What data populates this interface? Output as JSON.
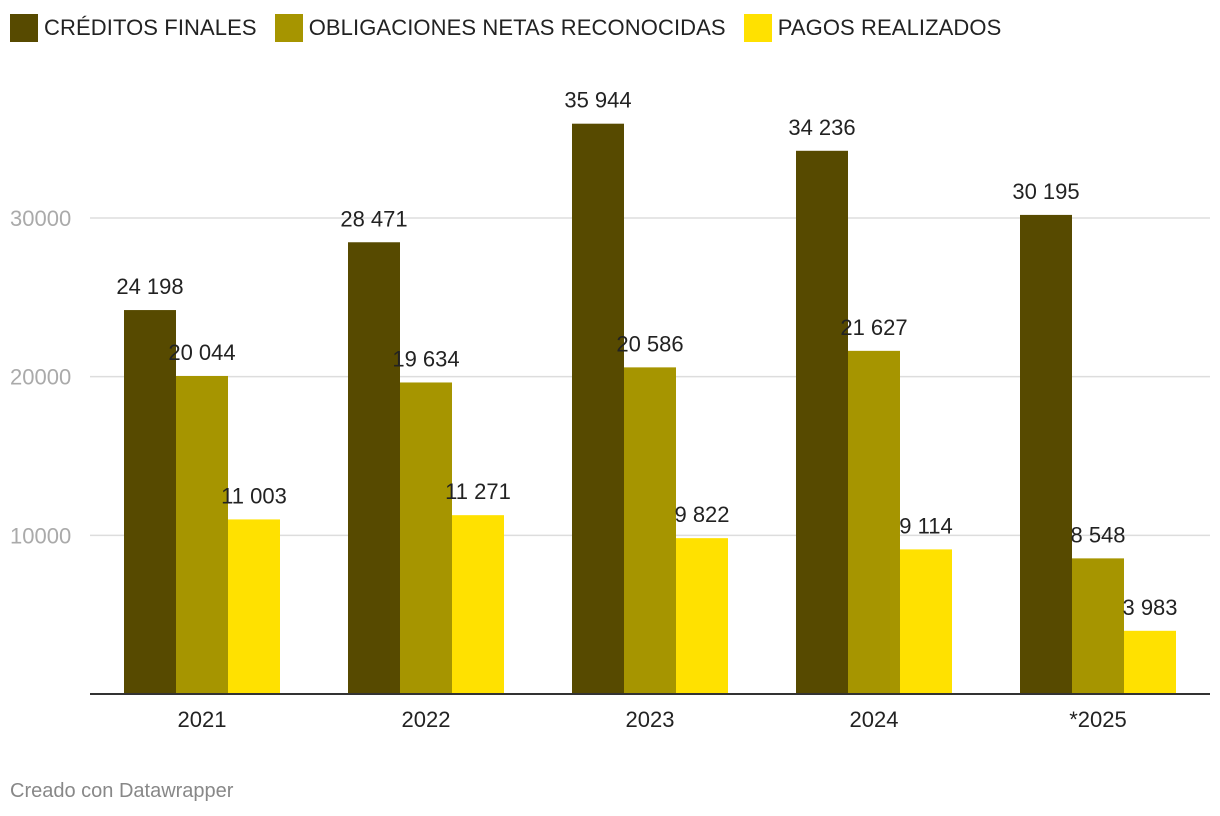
{
  "chart_data": {
    "type": "bar",
    "title": "",
    "xlabel": "",
    "ylabel": "",
    "categories": [
      "2021",
      "2022",
      "2023",
      "2024",
      "*2025"
    ],
    "series": [
      {
        "name": "CRÉDITOS FINALES",
        "color": "#574a00",
        "values": [
          24198,
          28471,
          35944,
          34236,
          30195
        ],
        "labels": [
          "24 198",
          "28 471",
          "35 944",
          "34 236",
          "30 195"
        ]
      },
      {
        "name": "OBLIGACIONES NETAS RECONOCIDAS",
        "color": "#a69500",
        "values": [
          20044,
          19634,
          20586,
          21627,
          8548
        ],
        "labels": [
          "20 044",
          "19 634",
          "20 586",
          "21 627",
          "8 548"
        ]
      },
      {
        "name": "PAGOS REALIZADOS",
        "color": "#ffe100",
        "values": [
          11003,
          11271,
          9822,
          9114,
          3983
        ],
        "labels": [
          "11 003",
          "11 271",
          "9 822",
          "9 114",
          "3 983"
        ]
      }
    ],
    "yticks": [
      10000,
      20000,
      30000
    ],
    "ytick_labels": [
      "10000",
      "20000",
      "30000"
    ],
    "ylim": [
      0,
      38000
    ],
    "grid": true,
    "legend": "top-left"
  },
  "footer": {
    "credit": "Creado con Datawrapper"
  }
}
